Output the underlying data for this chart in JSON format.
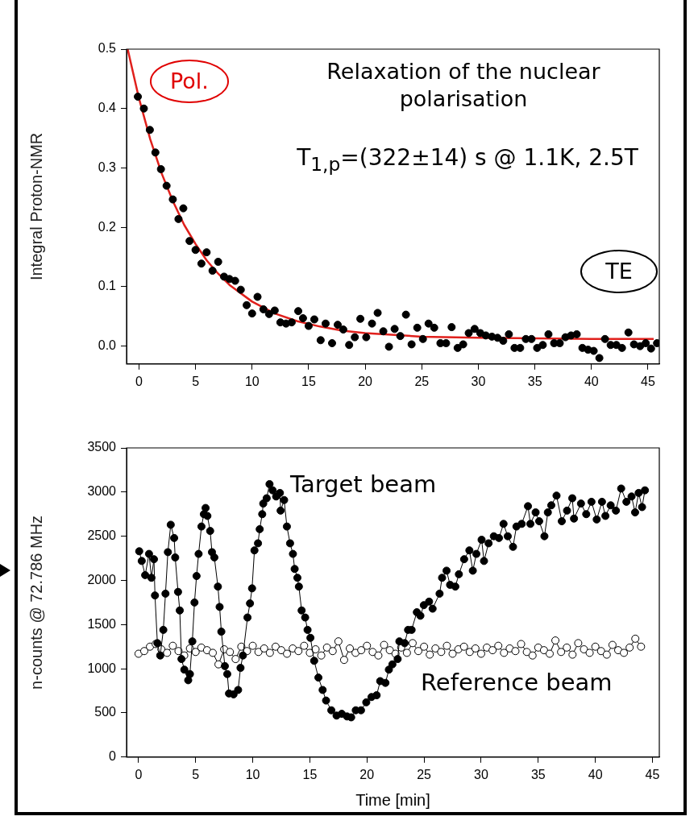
{
  "chart_data": [
    {
      "type": "scatter",
      "ylabel": "Integral Proton-NMR",
      "marker": "circle",
      "grid": false,
      "xlim": [
        -1.1,
        46
      ],
      "xticks": [
        0,
        5,
        10,
        15,
        20,
        25,
        30,
        35,
        40,
        45
      ],
      "ylim": [
        -0.03,
        0.5
      ],
      "yticks": [
        {
          "value": 0,
          "label": "0.0"
        },
        0.1,
        0.2,
        0.3,
        0.4,
        0.5
      ],
      "annotations": [
        "Relaxation of the nuclear polarisation",
        "T$_{1,p}$=(322±14) s @ 1.1K, 2.5T",
        "Pol.",
        "TE"
      ],
      "series": [
        {
          "color": "#000000",
          "x": [
            -0.1,
            0.43,
            0.96,
            1.45,
            1.94,
            2.44,
            2.99,
            3.92,
            3.49,
            4.47,
            5.0,
            5.98,
            5.52,
            7.0,
            6.5,
            7.52,
            8.0,
            8.5,
            9.0,
            9.52,
            10.48,
            10.0,
            11.0,
            11.5,
            12.0,
            12.5,
            13.0,
            13.5,
            14.08,
            14.5,
            15.0,
            15.5,
            16.06,
            16.5,
            17.07,
            17.57,
            18.06,
            18.58,
            19.08,
            19.57,
            20.09,
            20.6,
            21.1,
            21.6,
            22.1,
            22.6,
            23.1,
            23.6,
            24.1,
            24.6,
            25.1,
            25.6,
            26.1,
            26.65,
            27.15,
            27.64,
            28.17,
            28.66,
            29.15,
            29.67,
            30.17,
            30.66,
            31.2,
            31.7,
            32.2,
            32.7,
            33.2,
            33.7,
            34.2,
            34.7,
            35.2,
            35.7,
            36.2,
            36.7,
            37.2,
            37.7,
            38.2,
            38.7,
            39.2,
            39.7,
            40.2,
            40.7,
            41.2,
            41.7,
            42.2,
            42.7,
            43.27,
            43.76,
            44.3,
            44.8,
            45.27,
            45.8
          ],
          "values": [
            0.42,
            0.4,
            0.364,
            0.326,
            0.298,
            0.27,
            0.247,
            0.232,
            0.214,
            0.177,
            0.162,
            0.158,
            0.139,
            0.142,
            0.127,
            0.117,
            0.113,
            0.11,
            0.095,
            0.069,
            0.083,
            0.055,
            0.062,
            0.054,
            0.06,
            0.04,
            0.038,
            0.04,
            0.059,
            0.047,
            0.034,
            0.045,
            0.01,
            0.038,
            0.005,
            0.036,
            0.028,
            0.002,
            0.015,
            0.046,
            0.015,
            0.038,
            0.056,
            0.025,
            -0.001,
            0.029,
            0.017,
            0.053,
            0.003,
            0.031,
            0.012,
            0.038,
            0.031,
            0.005,
            0.005,
            0.032,
            -0.003,
            0.003,
            0.022,
            0.029,
            0.022,
            0.018,
            0.016,
            0.014,
            0.009,
            0.02,
            -0.003,
            -0.003,
            0.012,
            0.012,
            -0.003,
            0.002,
            0.02,
            0.005,
            0.005,
            0.015,
            0.018,
            0.02,
            -0.003,
            -0.006,
            -0.008,
            -0.02,
            0.012,
            0.002,
            0.002,
            -0.003,
            0.023,
            0.003,
            0,
            0.005,
            -0.004,
            0.005
          ]
        },
        {
          "type": "line",
          "marker": "none",
          "color": "#e0201c",
          "x": [
            -1,
            0,
            1,
            2,
            3,
            4,
            5,
            6,
            7,
            8,
            10,
            12,
            14,
            16,
            18,
            20,
            25,
            30,
            35,
            40,
            45.5
          ],
          "values": [
            0.5,
            0.417,
            0.348,
            0.291,
            0.244,
            0.204,
            0.172,
            0.144,
            0.122,
            0.103,
            0.075,
            0.055,
            0.042,
            0.033,
            0.026,
            0.022,
            0.016,
            0.014,
            0.013,
            0.012,
            0.012
          ]
        }
      ]
    },
    {
      "type": "line",
      "xlabel": "Time [min]",
      "ylabel": "n-counts @ 72.786 MHz",
      "marker": "circle",
      "grid": false,
      "xlim": [
        -1.05,
        45.6
      ],
      "xticks": [
        0,
        5,
        10,
        15,
        20,
        25,
        30,
        35,
        40,
        45
      ],
      "ylim": [
        0,
        3500
      ],
      "yticks": [
        0,
        500,
        1000,
        1500,
        2000,
        2500,
        3000,
        3500
      ],
      "series": [
        {
          "name": "Target beam",
          "color": "#000000",
          "x": [
            0.06,
            0.28,
            0.58,
            0.92,
            1.13,
            1.35,
            1.44,
            1.65,
            1.9,
            2.17,
            2.36,
            2.57,
            2.82,
            3.12,
            3.21,
            3.46,
            3.61,
            3.76,
            4.01,
            4.35,
            4.5,
            4.71,
            4.9,
            5.08,
            5.26,
            5.51,
            5.72,
            5.87,
            6.03,
            6.27,
            6.43,
            6.64,
            6.95,
            7.1,
            7.25,
            7.56,
            7.77,
            7.92,
            8.32,
            8.72,
            8.93,
            9.14,
            9.54,
            9.76,
            9.94,
            10.15,
            10.46,
            10.61,
            10.83,
            10.92,
            11.22,
            11.47,
            11.74,
            12.05,
            12.38,
            12.44,
            12.75,
            12.99,
            13.27,
            13.52,
            13.67,
            13.91,
            14.04,
            14.28,
            14.59,
            14.8,
            15.05,
            15.38,
            15.75,
            16.12,
            16.42,
            16.88,
            17.34,
            17.8,
            18.26,
            18.62,
            19.02,
            19.48,
            19.94,
            20.4,
            20.85,
            21.16,
            21.62,
            21.92,
            22.23,
            22.69,
            22.84,
            23.3,
            23.6,
            23.91,
            24.37,
            24.68,
            24.98,
            25.44,
            25.75,
            26.36,
            26.58,
            26.97,
            27.28,
            27.74,
            28.05,
            28.51,
            28.97,
            29.27,
            29.58,
            30.04,
            30.25,
            30.65,
            31.11,
            31.56,
            31.96,
            32.33,
            32.79,
            33.09,
            33.55,
            34.1,
            34.31,
            34.77,
            35.08,
            35.54,
            35.84,
            36.14,
            36.6,
            37.06,
            37.52,
            37.98,
            38.13,
            38.74,
            39.2,
            39.66,
            40.12,
            40.58,
            40.88,
            41.34,
            41.8,
            42.26,
            42.72,
            43.17,
            43.48,
            43.79,
            44.09,
            44.34
          ],
          "values": [
            2330,
            2220,
            2060,
            2300,
            2030,
            2240,
            1830,
            1290,
            1150,
            1440,
            1850,
            2320,
            2630,
            2480,
            2260,
            1870,
            1660,
            1110,
            990,
            870,
            940,
            1310,
            1750,
            2050,
            2300,
            2610,
            2750,
            2820,
            2730,
            2560,
            2320,
            2260,
            1930,
            1700,
            1420,
            1030,
            940,
            720,
            710,
            760,
            1010,
            1150,
            1580,
            1740,
            1910,
            2340,
            2420,
            2580,
            2750,
            2870,
            2930,
            3090,
            3020,
            2950,
            2990,
            2790,
            2910,
            2610,
            2420,
            2300,
            2130,
            2030,
            1930,
            1660,
            1580,
            1440,
            1350,
            1090,
            900,
            760,
            640,
            530,
            470,
            490,
            460,
            450,
            530,
            530,
            620,
            680,
            700,
            860,
            840,
            990,
            1050,
            1110,
            1310,
            1290,
            1440,
            1440,
            1640,
            1600,
            1720,
            1760,
            1680,
            1850,
            2030,
            2110,
            1950,
            1930,
            2070,
            2240,
            2340,
            2110,
            2300,
            2460,
            2220,
            2420,
            2500,
            2480,
            2640,
            2500,
            2380,
            2610,
            2640,
            2840,
            2640,
            2770,
            2670,
            2500,
            2770,
            2850,
            2960,
            2670,
            2790,
            2930,
            2700,
            2870,
            2750,
            2890,
            2690,
            2890,
            2730,
            2850,
            2790,
            3040,
            2890,
            2950,
            2770,
            2990,
            2830,
            3020
          ]
        },
        {
          "name": "Reference beam",
          "color": "#ffffff",
          "x": [
            0,
            0.5,
            1,
            1.5,
            2,
            2.5,
            3,
            3.5,
            4,
            4.5,
            5,
            5.5,
            6,
            6.5,
            7,
            7.5,
            8,
            8.5,
            9,
            9.5,
            10,
            10.5,
            11,
            11.5,
            12,
            12.5,
            13,
            13.5,
            14,
            14.5,
            15,
            15.5,
            16,
            16.5,
            17,
            17.5,
            18,
            18.5,
            19,
            19.5,
            20,
            20.5,
            21,
            21.5,
            22,
            22.5,
            23,
            23.5,
            24,
            24.5,
            25,
            25.5,
            26,
            26.5,
            27,
            27.5,
            28,
            28.5,
            29,
            29.5,
            30,
            30.5,
            31,
            31.5,
            32,
            32.5,
            33,
            33.5,
            34,
            34.5,
            35,
            35.5,
            36,
            36.5,
            37,
            37.5,
            38,
            38.5,
            39,
            39.5,
            40,
            40.5,
            41,
            41.5,
            42,
            42.5,
            43,
            43.5,
            44
          ],
          "values": [
            1170,
            1200,
            1250,
            1280,
            1220,
            1180,
            1260,
            1200,
            1150,
            1230,
            1190,
            1240,
            1210,
            1180,
            1050,
            1220,
            1190,
            1110,
            1250,
            1200,
            1260,
            1190,
            1230,
            1180,
            1250,
            1210,
            1170,
            1230,
            1200,
            1260,
            1180,
            1220,
            1150,
            1240,
            1200,
            1310,
            1100,
            1230,
            1180,
            1210,
            1260,
            1190,
            1150,
            1270,
            1210,
            1170,
            1240,
            1180,
            1290,
            1200,
            1250,
            1160,
            1230,
            1190,
            1260,
            1170,
            1220,
            1250,
            1190,
            1230,
            1170,
            1240,
            1210,
            1260,
            1180,
            1230,
            1200,
            1280,
            1190,
            1150,
            1240,
            1210,
            1170,
            1320,
            1190,
            1240,
            1160,
            1290,
            1220,
            1180,
            1250,
            1200,
            1160,
            1270,
            1210,
            1180,
            1240,
            1340,
            1250
          ]
        }
      ]
    }
  ]
}
